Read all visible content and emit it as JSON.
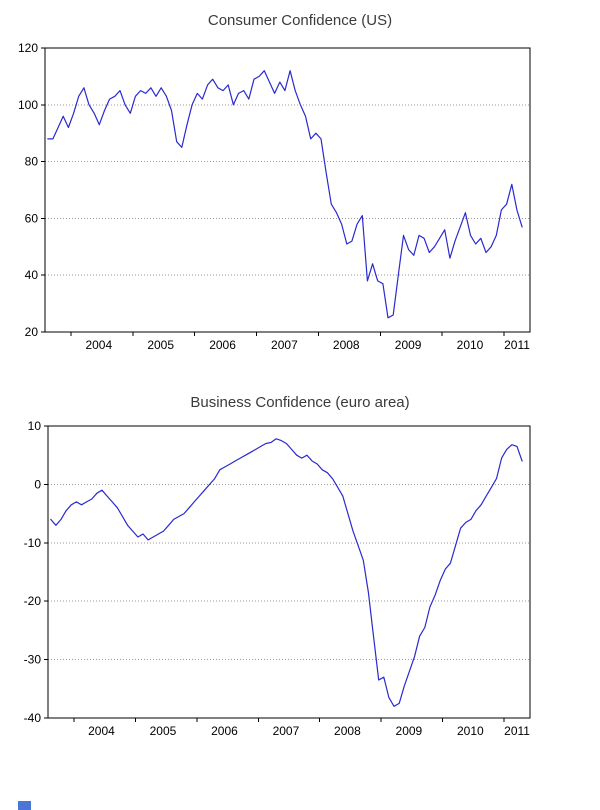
{
  "page": {
    "background": "#ffffff"
  },
  "chart_data": [
    {
      "type": "line",
      "title": "Consumer Confidence (US)",
      "xlabel": "",
      "ylabel": "",
      "legend": "none",
      "grid": "horizontal-dotted",
      "line_color": "#2a2ad0",
      "xlim": [
        2003.58,
        2011.42
      ],
      "ylim": [
        20,
        120
      ],
      "yticks": [
        20,
        40,
        60,
        80,
        100,
        120
      ],
      "xticks": [
        2004,
        2005,
        2006,
        2007,
        2008,
        2009,
        2010,
        2011
      ],
      "x_start": "2003-08",
      "x_frequency": "monthly",
      "x0": 2003.625,
      "dx": 0.0833333,
      "values": [
        88,
        88,
        92,
        96,
        92,
        97,
        103,
        106,
        100,
        97,
        93,
        98,
        102,
        103,
        105,
        100,
        97,
        103,
        105,
        104,
        106,
        103,
        106,
        103,
        98,
        87,
        85,
        93,
        100,
        104,
        102,
        107,
        109,
        106,
        105,
        107,
        100,
        104,
        105,
        102,
        109,
        110,
        112,
        108,
        104,
        108,
        105,
        112,
        105,
        100,
        96,
        88,
        90,
        88,
        76,
        65,
        62,
        58,
        51,
        52,
        58,
        61,
        38,
        44,
        38,
        37,
        25,
        26,
        40,
        54,
        49,
        47,
        54,
        53,
        48,
        50,
        53,
        56,
        46,
        52,
        57,
        62,
        54,
        51,
        53,
        48,
        50,
        54,
        63,
        65,
        72,
        63,
        57
      ]
    },
    {
      "type": "line",
      "title": "Business Confidence (euro area)",
      "xlabel": "",
      "ylabel": "",
      "legend": "none",
      "grid": "horizontal-dotted",
      "line_color": "#2a2ad0",
      "xlim": [
        2003.58,
        2011.42
      ],
      "ylim": [
        -40,
        10
      ],
      "yticks": [
        -40,
        -30,
        -20,
        -10,
        0,
        10
      ],
      "xticks": [
        2004,
        2005,
        2006,
        2007,
        2008,
        2009,
        2010,
        2011
      ],
      "x_start": "2003-08",
      "x_frequency": "monthly",
      "x0": 2003.625,
      "dx": 0.0833333,
      "values": [
        -6,
        -7,
        -6,
        -4.5,
        -3.5,
        -3,
        -3.5,
        -3,
        -2.5,
        -1.5,
        -1,
        -2,
        -3,
        -4,
        -5.5,
        -7,
        -8,
        -9,
        -8.5,
        -9.5,
        -9,
        -8.5,
        -8,
        -7,
        -6,
        -5.5,
        -5,
        -4,
        -3,
        -2,
        -1,
        0,
        1,
        2.5,
        3,
        3.5,
        4,
        4.5,
        5,
        5.5,
        6,
        6.5,
        7,
        7.2,
        7.8,
        7.5,
        7,
        6,
        5,
        4.5,
        5,
        4,
        3.5,
        2.5,
        2,
        1,
        -0.5,
        -2,
        -5,
        -8,
        -10.5,
        -13,
        -18.5,
        -26,
        -33.5,
        -33,
        -36.5,
        -38,
        -37.5,
        -34.5,
        -32,
        -29.5,
        -26,
        -24.5,
        -21,
        -19,
        -16.5,
        -14.5,
        -13.5,
        -10.5,
        -7.5,
        -6.5,
        -6,
        -4.5,
        -3.5,
        -2,
        -0.5,
        1,
        4.5,
        6,
        6.8,
        6.5,
        4
      ]
    }
  ]
}
